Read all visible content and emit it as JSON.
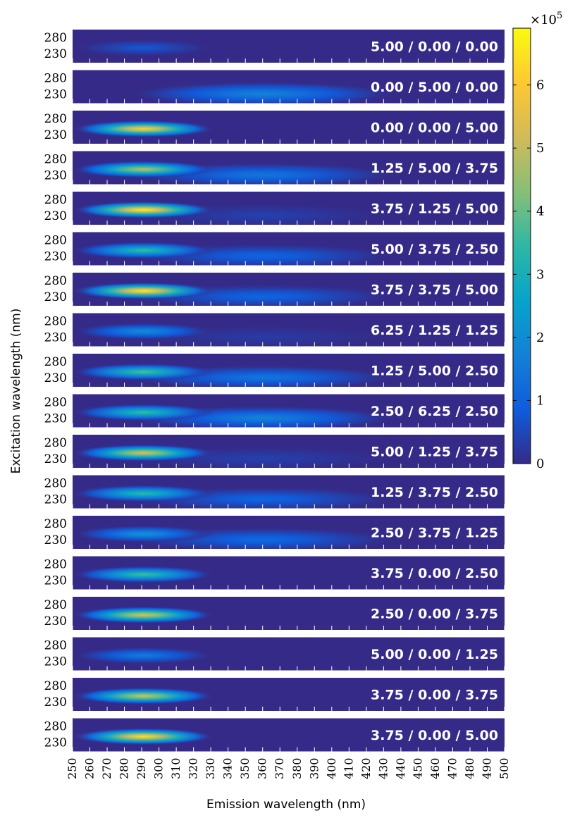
{
  "chart_data": {
    "type": "heatmap",
    "xlabel": "Emission wavelength (nm)",
    "ylabel": "Excitation wavelength (nm)",
    "x_range": [
      250,
      500
    ],
    "x_ticks": [
      250,
      260,
      270,
      280,
      290,
      300,
      310,
      320,
      330,
      340,
      350,
      360,
      370,
      380,
      390,
      400,
      410,
      420,
      430,
      440,
      450,
      460,
      470,
      480,
      490,
      500
    ],
    "y_ticks": [
      280,
      230
    ],
    "colorbar": {
      "multiplier": "×10^5",
      "ticks": [
        0,
        1,
        2,
        3,
        4,
        5,
        6
      ],
      "range": [
        0,
        6.9
      ],
      "colors": [
        "#352a87",
        "#0f5cdd",
        "#1481d6",
        "#06a4ca",
        "#2eb7a4",
        "#87bf77",
        "#d1bb59",
        "#fec832",
        "#f9fb0e"
      ]
    },
    "panels": [
      {
        "label": "5.00 / 0.00 / 0.00",
        "peak1": 0.8,
        "peak2": 0.0
      },
      {
        "label": "0.00 / 5.00 / 0.00",
        "peak1": 0.0,
        "peak2": 1.8
      },
      {
        "label": "0.00 / 0.00 / 5.00",
        "peak1": 6.2,
        "peak2": 0.0
      },
      {
        "label": "1.25 / 5.00 / 3.75",
        "peak1": 5.0,
        "peak2": 1.5
      },
      {
        "label": "3.75 / 1.25 / 5.00",
        "peak1": 6.7,
        "peak2": 0.4
      },
      {
        "label": "5.00 / 3.75 / 2.50",
        "peak1": 3.6,
        "peak2": 1.1
      },
      {
        "label": "3.75 / 3.75 / 5.00",
        "peak1": 6.6,
        "peak2": 1.1
      },
      {
        "label": "6.25 / 1.25 / 1.25",
        "peak1": 2.0,
        "peak2": 0.3
      },
      {
        "label": "1.25 / 5.00 / 2.50",
        "peak1": 3.8,
        "peak2": 1.5
      },
      {
        "label": "2.50 / 6.25 / 2.50",
        "peak1": 3.6,
        "peak2": 1.8
      },
      {
        "label": "5.00 / 1.25 / 3.75",
        "peak1": 5.4,
        "peak2": 0.4
      },
      {
        "label": "1.25 / 3.75 / 2.50",
        "peak1": 3.5,
        "peak2": 1.1
      },
      {
        "label": "2.50 / 3.75 / 1.25",
        "peak1": 2.2,
        "peak2": 1.2
      },
      {
        "label": "3.75 / 0.00 / 2.50",
        "peak1": 3.7,
        "peak2": 0.0
      },
      {
        "label": "2.50 / 0.00 / 3.75",
        "peak1": 5.4,
        "peak2": 0.0
      },
      {
        "label": "5.00 / 0.00 / 1.25",
        "peak1": 1.6,
        "peak2": 0.0
      },
      {
        "label": "3.75 / 0.00 / 3.75",
        "peak1": 5.3,
        "peak2": 0.0
      },
      {
        "label": "3.75 / 0.00 / 5.00",
        "peak1": 6.5,
        "peak2": 0.0
      }
    ]
  }
}
